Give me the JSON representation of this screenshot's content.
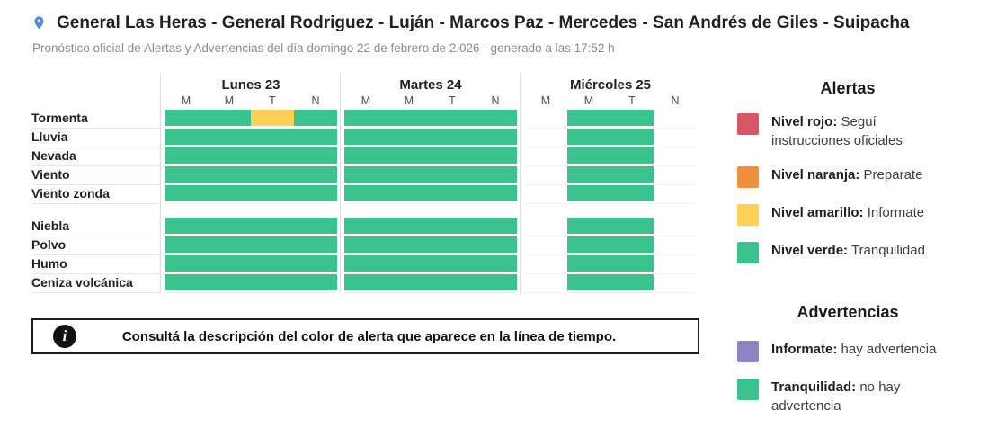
{
  "header": {
    "title": "General Las Heras - General Rodriguez - Luján - Marcos Paz - Mercedes - San Andrés de Giles - Suipacha",
    "subtitle": "Pronóstico oficial de Alertas y Advertencias del día domingo 22 de febrero de 2.026 - generado a las 17:52 h"
  },
  "colors": {
    "green": "#3ac28f",
    "yellow": "#fcd155",
    "red": "#d95667",
    "orange": "#ef913c",
    "purple": "#8c85c3",
    "pin_blue": "#4a8fe2"
  },
  "icons": {
    "location": "location-pin-icon",
    "info": "info-icon"
  },
  "timeline": {
    "period_labels": [
      "M",
      "M",
      "T",
      "N"
    ],
    "days": [
      {
        "label": "Lunes 23"
      },
      {
        "label": "Martes 24"
      },
      {
        "label": "Miércoles 25"
      }
    ],
    "groups": [
      {
        "rows": [
          {
            "label": "Tormenta",
            "cells": [
              [
                "green",
                "green",
                "yellow",
                "green"
              ],
              [
                "green",
                "green",
                "green",
                "green"
              ],
              [
                null,
                "green",
                "green",
                null
              ]
            ]
          },
          {
            "label": "Lluvia",
            "cells": [
              [
                "green",
                "green",
                "green",
                "green"
              ],
              [
                "green",
                "green",
                "green",
                "green"
              ],
              [
                null,
                "green",
                "green",
                null
              ]
            ]
          },
          {
            "label": "Nevada",
            "cells": [
              [
                "green",
                "green",
                "green",
                "green"
              ],
              [
                "green",
                "green",
                "green",
                "green"
              ],
              [
                null,
                "green",
                "green",
                null
              ]
            ]
          },
          {
            "label": "Viento",
            "cells": [
              [
                "green",
                "green",
                "green",
                "green"
              ],
              [
                "green",
                "green",
                "green",
                "green"
              ],
              [
                null,
                "green",
                "green",
                null
              ]
            ]
          },
          {
            "label": "Viento zonda",
            "cells": [
              [
                "green",
                "green",
                "green",
                "green"
              ],
              [
                "green",
                "green",
                "green",
                "green"
              ],
              [
                null,
                "green",
                "green",
                null
              ]
            ]
          }
        ]
      },
      {
        "rows": [
          {
            "label": "Niebla",
            "cells": [
              [
                "green",
                "green",
                "green",
                "green"
              ],
              [
                "green",
                "green",
                "green",
                "green"
              ],
              [
                null,
                "green",
                "green",
                null
              ]
            ]
          },
          {
            "label": "Polvo",
            "cells": [
              [
                "green",
                "green",
                "green",
                "green"
              ],
              [
                "green",
                "green",
                "green",
                "green"
              ],
              [
                null,
                "green",
                "green",
                null
              ]
            ]
          },
          {
            "label": "Humo",
            "cells": [
              [
                "green",
                "green",
                "green",
                "green"
              ],
              [
                "green",
                "green",
                "green",
                "green"
              ],
              [
                null,
                "green",
                "green",
                null
              ]
            ]
          },
          {
            "label": "Ceniza volcánica",
            "cells": [
              [
                "green",
                "green",
                "green",
                "green"
              ],
              [
                "green",
                "green",
                "green",
                "green"
              ],
              [
                null,
                "green",
                "green",
                null
              ]
            ]
          }
        ]
      }
    ]
  },
  "legend": {
    "alertas": {
      "title": "Alertas",
      "items": [
        {
          "color": "red",
          "name": "Nivel rojo:",
          "desc": " Seguí instrucciones oficiales"
        },
        {
          "color": "orange",
          "name": "Nivel naranja:",
          "desc": " Preparate"
        },
        {
          "color": "yellow",
          "name": "Nivel amarillo:",
          "desc": " Informate"
        },
        {
          "color": "green",
          "name": "Nivel verde:",
          "desc": " Tranquilidad"
        }
      ]
    },
    "advertencias": {
      "title": "Advertencias",
      "items": [
        {
          "color": "purple",
          "name": "Informate:",
          "desc": " hay advertencia"
        },
        {
          "color": "green",
          "name": "Tranquilidad:",
          "desc": " no hay advertencia"
        }
      ]
    }
  },
  "info_box": {
    "text": "Consultá la descripción del color de alerta que aparece en la línea de tiempo."
  }
}
